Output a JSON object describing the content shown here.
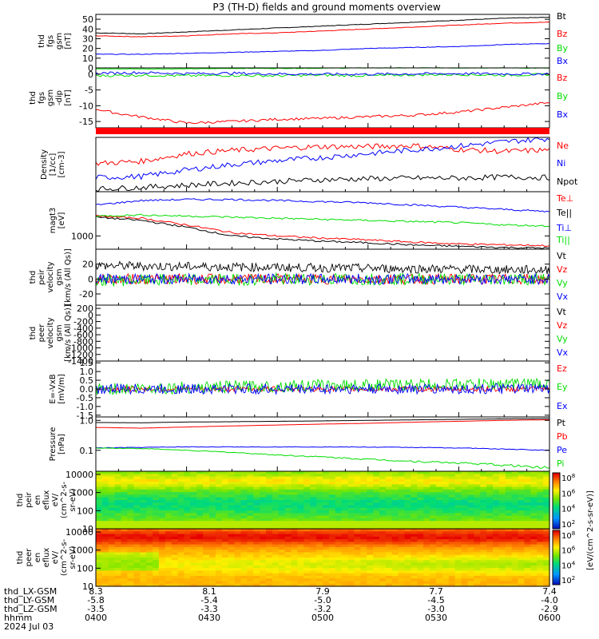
{
  "title": "P3 (TH-D) fields and ground moments overview",
  "colors": {
    "black": "#000000",
    "red": "#ff0000",
    "green": "#00dd00",
    "blue": "#0000ff"
  },
  "chart_data": [
    {
      "id": "p1",
      "type": "line",
      "ylabel": [
        "thd",
        "fgs",
        "gsm",
        "[nT]"
      ],
      "ylim": [
        0,
        55
      ],
      "yticks": [
        {
          "v": 0,
          "label": "0"
        },
        {
          "v": 10,
          "label": "10"
        },
        {
          "v": 20,
          "label": "20"
        },
        {
          "v": 30,
          "label": "30"
        },
        {
          "v": 40,
          "label": "40"
        },
        {
          "v": 50,
          "label": "50"
        }
      ],
      "series": [
        {
          "name": "Bt",
          "color": "black",
          "x": [
            0,
            0.1,
            0.2,
            0.3,
            0.4,
            0.5,
            0.6,
            0.7,
            0.8,
            0.9,
            1
          ],
          "y": [
            36,
            35,
            37,
            39,
            41,
            43,
            45,
            47,
            49,
            51,
            52
          ]
        },
        {
          "name": "Bz",
          "color": "red",
          "x": [
            0,
            0.1,
            0.2,
            0.3,
            0.4,
            0.5,
            0.6,
            0.7,
            0.8,
            0.9,
            1
          ],
          "y": [
            33,
            32,
            33,
            35,
            36,
            38,
            40,
            42,
            44,
            46,
            47
          ]
        },
        {
          "name": "By",
          "color": "green",
          "x": [
            0,
            0.1,
            0.2,
            0.3,
            0.4,
            0.5,
            0.6,
            0.7,
            0.8,
            0.9,
            1
          ],
          "y": [
            -1,
            -1,
            -1,
            -0.5,
            -0.5,
            -0.3,
            0,
            0,
            0,
            0,
            -0.3
          ]
        },
        {
          "name": "Bx",
          "color": "blue",
          "x": [
            0,
            0.1,
            0.2,
            0.3,
            0.4,
            0.5,
            0.6,
            0.7,
            0.8,
            0.9,
            1
          ],
          "y": [
            14,
            14,
            15,
            16,
            17,
            18,
            20,
            21,
            22,
            24,
            25
          ]
        }
      ]
    },
    {
      "id": "p2",
      "type": "line",
      "ylabel": [
        "thd",
        "fgs",
        "gsm",
        "-dip",
        "[nT]"
      ],
      "ylim": [
        -17,
        2
      ],
      "yticks": [
        {
          "v": 0,
          "label": "0"
        },
        {
          "v": -5,
          "label": "-5"
        },
        {
          "v": -10,
          "label": "-10"
        },
        {
          "v": -15,
          "label": "-15"
        }
      ],
      "series": [
        {
          "name": "Bz",
          "color": "red",
          "x": [
            0,
            0.05,
            0.1,
            0.15,
            0.2,
            0.3,
            0.4,
            0.5,
            0.6,
            0.7,
            0.8,
            0.9,
            1
          ],
          "y": [
            -11,
            -12.5,
            -13.5,
            -14.5,
            -15.5,
            -15,
            -14.3,
            -14,
            -13.5,
            -13,
            -12,
            -10.5,
            -9
          ]
        },
        {
          "name": "By",
          "color": "green",
          "x": [
            0,
            0.1,
            0.2,
            0.3,
            0.4,
            0.5,
            0.6,
            0.7,
            0.8,
            0.9,
            1
          ],
          "y": [
            -0.5,
            -0.3,
            -0.5,
            -0.4,
            -0.5,
            -0.3,
            -0.5,
            -0.2,
            -0.1,
            -0.3,
            -0.1
          ]
        },
        {
          "name": "Bx",
          "color": "blue",
          "x": [
            0,
            0.1,
            0.2,
            0.3,
            0.4,
            0.5,
            0.6,
            0.7,
            0.8,
            0.9,
            1
          ],
          "y": [
            0.3,
            0.5,
            0.2,
            0.3,
            0.1,
            0,
            0,
            0.1,
            0.2,
            0.1,
            0.1
          ]
        }
      ]
    },
    {
      "id": "p3",
      "type": "line",
      "ylabel": [
        "Density",
        "[1/cc]",
        "[cm-3]"
      ],
      "ylim": [
        0,
        10
      ],
      "yticks": [],
      "series": [
        {
          "name": "Ne",
          "color": "red",
          "x": [
            0,
            0.1,
            0.2,
            0.3,
            0.4,
            0.5,
            0.6,
            0.7,
            0.8,
            0.9,
            1
          ],
          "y": [
            5.2,
            5.6,
            7,
            7.6,
            8,
            8.3,
            8.3,
            8.5,
            7.8,
            7.4,
            7.7
          ]
        },
        {
          "name": "Ni",
          "color": "blue",
          "x": [
            0,
            0.1,
            0.2,
            0.3,
            0.4,
            0.5,
            0.6,
            0.7,
            0.8,
            0.9,
            1
          ],
          "y": [
            2.6,
            2.8,
            4,
            5,
            5.7,
            6.3,
            7,
            7.7,
            8.4,
            9.2,
            9.8
          ]
        },
        {
          "name": "Npot",
          "color": "black",
          "x": [
            0,
            0.1,
            0.2,
            0.3,
            0.4,
            0.5,
            0.6,
            0.7,
            0.8,
            0.9,
            1
          ],
          "y": [
            0.5,
            0.8,
            1.2,
            1.6,
            1.9,
            2.2,
            2.4,
            2.5,
            2.5,
            2.7,
            2.6
          ]
        }
      ]
    },
    {
      "id": "p4",
      "type": "line",
      "ylabel": [
        "magt3",
        "[eV]"
      ],
      "ylim": [
        400,
        3000
      ],
      "yticks": [
        {
          "v": 1000,
          "label": "1000"
        }
      ],
      "series": [
        {
          "name": "Te⊥",
          "color": "red",
          "x": [
            0,
            0.1,
            0.2,
            0.3,
            0.4,
            0.5,
            0.6,
            0.7,
            0.8,
            0.9,
            1
          ],
          "y": [
            1900,
            1800,
            1500,
            1150,
            1000,
            900,
            820,
            720,
            640,
            600,
            560
          ]
        },
        {
          "name": "Te||",
          "color": "black",
          "x": [
            0,
            0.1,
            0.2,
            0.3,
            0.4,
            0.5,
            0.6,
            0.7,
            0.8,
            0.9,
            1
          ],
          "y": [
            1850,
            1700,
            1400,
            1000,
            860,
            760,
            690,
            590,
            530,
            480,
            450
          ]
        },
        {
          "name": "Ti⊥",
          "color": "blue",
          "x": [
            0,
            0.1,
            0.2,
            0.3,
            0.4,
            0.5,
            0.6,
            0.7,
            0.8,
            0.9,
            1
          ],
          "y": [
            2400,
            2600,
            2650,
            2650,
            2600,
            2550,
            2500,
            2400,
            2300,
            2200,
            2100
          ]
        },
        {
          "name": "Ti||",
          "color": "green",
          "x": [
            0,
            0.1,
            0.2,
            0.3,
            0.4,
            0.5,
            0.6,
            0.7,
            0.8,
            0.9,
            1
          ],
          "y": [
            1900,
            1950,
            1900,
            1850,
            1800,
            1750,
            1700,
            1650,
            1600,
            1500,
            1450
          ]
        }
      ]
    },
    {
      "id": "p5",
      "type": "line",
      "ylabel": [
        "thd",
        "peir",
        "velocity",
        "gsm",
        "[km/s (All Qs)]"
      ],
      "ylim": [
        -35,
        40
      ],
      "yticks": [
        {
          "v": -20,
          "label": "-20"
        },
        {
          "v": 0,
          "label": "0"
        },
        {
          "v": 20,
          "label": "20"
        }
      ],
      "series": [
        {
          "name": "Vt",
          "color": "black",
          "x": [
            0,
            0.5,
            1
          ],
          "y": [
            18,
            15,
            12
          ]
        },
        {
          "name": "Vz",
          "color": "red",
          "x": [
            0,
            0.5,
            1
          ],
          "y": [
            0,
            0,
            0
          ]
        },
        {
          "name": "Vy",
          "color": "green",
          "x": [
            0,
            0.5,
            1
          ],
          "y": [
            -2,
            0,
            0
          ]
        },
        {
          "name": "Vx",
          "color": "blue",
          "x": [
            0,
            0.5,
            1
          ],
          "y": [
            0,
            0,
            0
          ]
        }
      ]
    },
    {
      "id": "p6",
      "type": "line",
      "ylabel": [
        "thd",
        "peer",
        "velocity",
        "gsm",
        "[km/s (All Qs)]"
      ],
      "ylim": [
        -1400,
        300
      ],
      "yticks": [
        {
          "v": 200,
          "label": "200"
        },
        {
          "v": 0,
          "label": "0"
        },
        {
          "v": -200,
          "label": "-200"
        },
        {
          "v": -400,
          "label": "-400"
        },
        {
          "v": -600,
          "label": "-600"
        },
        {
          "v": -800,
          "label": "-800"
        },
        {
          "v": -1000,
          "label": "-1000"
        },
        {
          "v": -1200,
          "label": "-1200"
        },
        {
          "v": -1400,
          "label": "-1400"
        }
      ],
      "series": [
        {
          "name": "Vt",
          "color": "black",
          "x": [],
          "y": []
        },
        {
          "name": "Vz",
          "color": "red",
          "x": [],
          "y": []
        },
        {
          "name": "Vy",
          "color": "green",
          "x": [],
          "y": []
        },
        {
          "name": "Vx",
          "color": "blue",
          "x": [],
          "y": []
        }
      ]
    },
    {
      "id": "p7",
      "type": "line",
      "ylabel": [
        "E=-VxB",
        "[mV/m]"
      ],
      "ylim": [
        -1.6,
        1.6
      ],
      "yticks": [
        {
          "v": 1.5,
          "label": "1.5"
        },
        {
          "v": 1.0,
          "label": "1.0"
        },
        {
          "v": 0.5,
          "label": "0.5"
        },
        {
          "v": 0,
          "label": "0.0"
        },
        {
          "v": -0.5,
          "label": "-0.5"
        },
        {
          "v": -1.0,
          "label": "-1.0"
        },
        {
          "v": -1.5,
          "label": "-1.5"
        }
      ],
      "series": [
        {
          "name": "Ez",
          "color": "red",
          "x": [
            0,
            0.5,
            1
          ],
          "y": [
            0,
            0,
            0
          ]
        },
        {
          "name": "Ey",
          "color": "green",
          "x": [
            0,
            0.5,
            1
          ],
          "y": [
            0,
            0.2,
            0.3
          ]
        },
        {
          "name": "Ex",
          "color": "blue",
          "x": [
            0,
            0.5,
            1
          ],
          "y": [
            0,
            0,
            0
          ]
        }
      ]
    },
    {
      "id": "p8",
      "type": "line",
      "ylabel": [
        "Pressure",
        "[nPa]"
      ],
      "ylim": [
        0.02,
        1.3
      ],
      "log": true,
      "yticks": [
        {
          "v": 1,
          "label": "1.0"
        },
        {
          "v": 0.1,
          "label": "0.1"
        }
      ],
      "series": [
        {
          "name": "Pt",
          "color": "black",
          "x": [
            0,
            0.1,
            0.2,
            0.3,
            0.4,
            0.5,
            0.6,
            0.7,
            0.8,
            0.9,
            1
          ],
          "y": [
            0.85,
            0.83,
            0.88,
            0.9,
            0.93,
            0.96,
            1.0,
            1.04,
            1.08,
            1.12,
            1.15
          ]
        },
        {
          "name": "Pb",
          "color": "red",
          "x": [
            0,
            0.1,
            0.2,
            0.3,
            0.4,
            0.5,
            0.6,
            0.7,
            0.8,
            0.9,
            1
          ],
          "y": [
            0.58,
            0.55,
            0.6,
            0.65,
            0.7,
            0.75,
            0.8,
            0.87,
            0.93,
            1.0,
            1.05
          ]
        },
        {
          "name": "Pe",
          "color": "blue",
          "x": [
            0,
            0.1,
            0.2,
            0.3,
            0.4,
            0.5,
            0.6,
            0.7,
            0.8,
            0.9,
            1
          ],
          "y": [
            0.12,
            0.125,
            0.13,
            0.13,
            0.13,
            0.13,
            0.128,
            0.125,
            0.12,
            0.11,
            0.1
          ]
        },
        {
          "name": "Pi",
          "color": "green",
          "x": [
            0,
            0.1,
            0.2,
            0.3,
            0.4,
            0.5,
            0.6,
            0.7,
            0.8,
            0.9,
            1
          ],
          "y": [
            0.12,
            0.115,
            0.1,
            0.085,
            0.07,
            0.06,
            0.05,
            0.043,
            0.038,
            0.032,
            0.026
          ]
        }
      ]
    },
    {
      "id": "p9",
      "type": "heatmap",
      "ylabel": [
        "thd",
        "peir",
        "en",
        "eflux",
        "eV/",
        "(cm^2-s-",
        "sr-eV)"
      ],
      "yticks": [
        {
          "v": 10000,
          "label": "10000"
        },
        {
          "v": 1000,
          "label": "1000"
        },
        {
          "v": 100,
          "label": "100"
        },
        {
          "v": 10,
          "label": "10"
        }
      ]
    },
    {
      "id": "p10",
      "type": "heatmap",
      "ylabel": [
        "thd",
        "peer",
        "en",
        "eflux",
        "eV/",
        "(cm^2-s-",
        "sr-eV)"
      ],
      "yticks": [
        {
          "v": 10000,
          "label": "10000"
        },
        {
          "v": 1000,
          "label": "1000"
        },
        {
          "v": 100,
          "label": "100"
        },
        {
          "v": 10,
          "label": "10"
        }
      ]
    }
  ],
  "colorbar_label": "[eV/(cm^2-s-sr-eV)]",
  "colorbar_exponents": [
    "8",
    "6",
    "4",
    "2"
  ],
  "colorbar_base": "10",
  "xaxis": {
    "row_labels": [
      "thd_LX-GSM",
      "thd_LY-GSM",
      "thd_LZ-GSM",
      "hhmm",
      "2024 Jul 03"
    ],
    "columns": [
      [
        "8.3",
        "-5.8",
        "-3.5",
        "0400"
      ],
      [
        "8.1",
        "-5.4",
        "-3.3",
        "0430"
      ],
      [
        "7.9",
        "-5.0",
        "-3.2",
        "0500"
      ],
      [
        "7.7",
        "-4.5",
        "-3.0",
        "0530"
      ],
      [
        "7.4",
        "-4.0",
        "-2.9",
        "0600"
      ]
    ]
  }
}
